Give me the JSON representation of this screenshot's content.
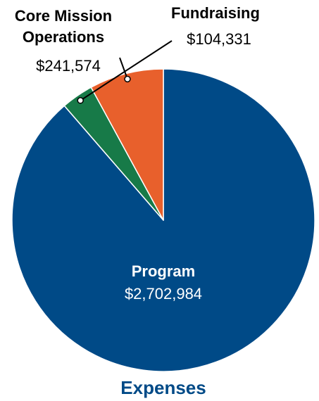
{
  "chart_data": {
    "type": "pie",
    "title": "Expenses",
    "slices": [
      {
        "label": "Program",
        "label_lines": [
          "Program"
        ],
        "display_value": "$2,702,984",
        "value": 2702984,
        "color": "#004a87"
      },
      {
        "label": "Fundraising",
        "label_lines": [
          "Fundraising"
        ],
        "display_value": "$104,331",
        "value": 104331,
        "color": "#177a48"
      },
      {
        "label": "Core Mission Operations",
        "label_lines": [
          "Core Mission",
          "Operations"
        ],
        "display_value": "$241,574",
        "value": 241574,
        "color": "#e8602c"
      }
    ],
    "title_color": "#004a87",
    "separator_color": "#ffffff"
  }
}
